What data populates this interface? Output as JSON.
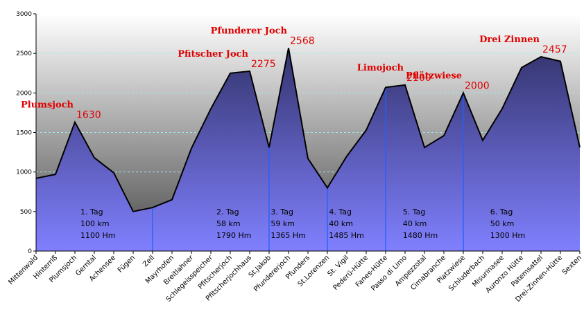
{
  "chart_data": {
    "type": "area",
    "title": "",
    "xlabel": "",
    "ylabel": "",
    "ylim": [
      0,
      3000
    ],
    "yticks": [
      0,
      500,
      1000,
      1500,
      2000,
      2500,
      3000
    ],
    "grid": "horizontal dashed",
    "categories": [
      "Mittenwald",
      "Hinterriß",
      "Plumsjoch",
      "Gerntal",
      "Achensee",
      "Fügen",
      "Zell",
      "Mayrhofen",
      "Breitlahner",
      "Schlegeisspeicher",
      "Pfitscherjoch",
      "Pfitscherjochhaus",
      "St.Jakob",
      "Pfundererjoch",
      "Pfunders",
      "St.Lorenzen",
      "St. Vigil",
      "Pederü-Hütte",
      "Fanes-Hütte",
      "Passo di Limo",
      "Ampezzotal",
      "Cimabranche",
      "Platzwiese",
      "Schluderbach",
      "Misurinasee",
      "Auronzo Hütte",
      "Patemsattel",
      "Drei-Zinnen-Hütte",
      "Sexten"
    ],
    "series": [
      {
        "values": [
          920,
          970,
          1630,
          1180,
          990,
          500,
          550,
          650,
          1300,
          1800,
          2250,
          2275,
          1310,
          2568,
          1170,
          800,
          1200,
          1530,
          2070,
          2100,
          1310,
          1460,
          2000,
          1400,
          1800,
          2320,
          2457,
          2400,
          1310
        ]
      }
    ],
    "peaks": [
      {
        "name": "Plumsjoch",
        "value": "1630",
        "index": 2
      },
      {
        "name": "Pfitscher Joch",
        "value": "2275",
        "index": 11
      },
      {
        "name": "Pfunderer Joch",
        "value": "2568",
        "index": 13
      },
      {
        "name": "Limojoch",
        "value": "2100",
        "index": 19
      },
      {
        "name": "Pflätzwiese",
        "value": "2000",
        "index": 22
      },
      {
        "name": "Drei Zinnen",
        "value": "2457",
        "index": 26
      }
    ],
    "stage_dividers": [
      6,
      12,
      15,
      18,
      22
    ],
    "stages": [
      {
        "day": "1. Tag",
        "distance": "100 km",
        "climb": "1100 Hm",
        "index": 2.5
      },
      {
        "day": "2. Tag",
        "distance": "58 km",
        "climb": "1790 Hm",
        "index": 9.5
      },
      {
        "day": "3. Tag",
        "distance": "59 km",
        "climb": "1365 Hm",
        "index": 12.3
      },
      {
        "day": "4. Tag",
        "distance": "40 km",
        "climb": "1485 Hm",
        "index": 15.3
      },
      {
        "day": "5. Tag",
        "distance": "40 km",
        "climb": "1480 Hm",
        "index": 19.1
      },
      {
        "day": "6. Tag",
        "distance": "50 km",
        "climb": "1300 Hm",
        "index": 23.6
      }
    ],
    "colors": {
      "fill_top": "#34346e",
      "fill_bottom": "#8080ff",
      "line": "#000000",
      "divider": "#2060ff",
      "gridline": "#a0e8f0",
      "bg_top": "#ffffff",
      "bg_bottom": "#484848",
      "annotation": "#e00000"
    }
  }
}
